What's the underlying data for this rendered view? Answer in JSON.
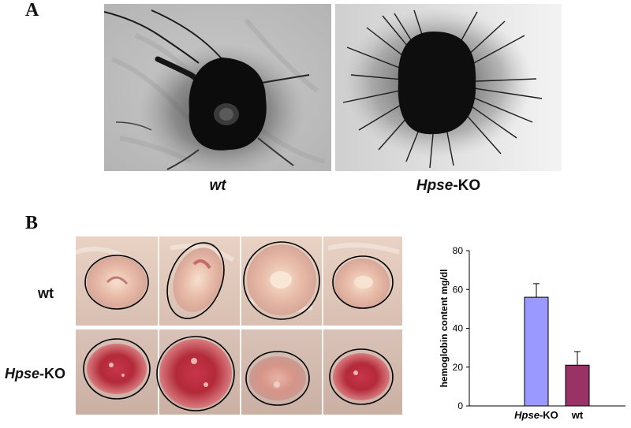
{
  "panel_a": {
    "letter": "A",
    "left_label": "wt",
    "right_label_italic": "Hpse",
    "right_label_suffix": "-KO"
  },
  "panel_b": {
    "letter": "B",
    "row1_label": "wt",
    "row2_label_italic": "Hpse",
    "row2_label_suffix": "-KO"
  },
  "chart_data": {
    "type": "bar",
    "categories": [
      "Hpse-KO",
      "wt"
    ],
    "category_display": [
      {
        "italic": "Hpse",
        "plain": "-KO"
      },
      {
        "italic": "",
        "plain": "wt"
      }
    ],
    "values": [
      56,
      21
    ],
    "errors": [
      7,
      7
    ],
    "colors": [
      "#9999ff",
      "#993366"
    ],
    "ylabel": "hemoglobin content mg/dl",
    "yticks": [
      0,
      20,
      40,
      60,
      80
    ],
    "ylim": [
      0,
      80
    ]
  }
}
